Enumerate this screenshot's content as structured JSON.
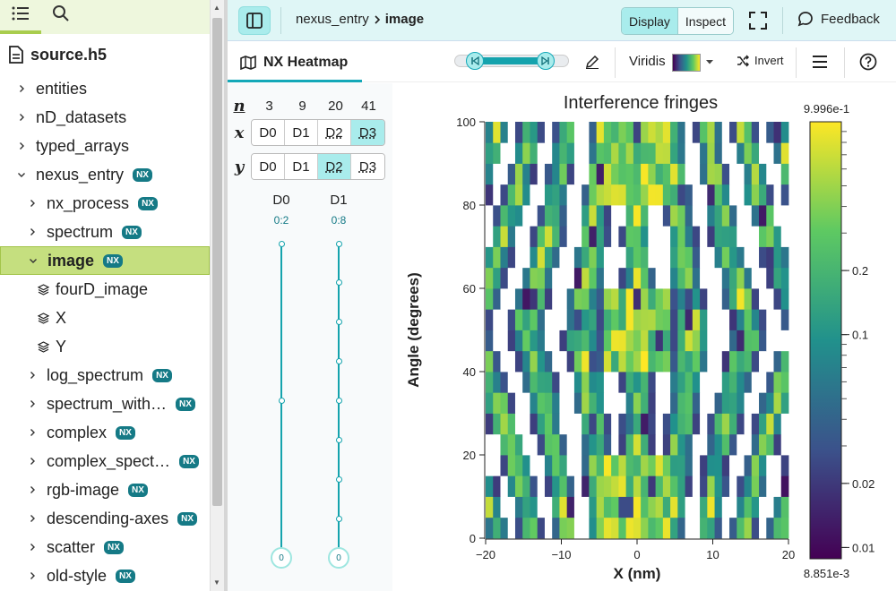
{
  "sidebar": {
    "file_name": "source.h5",
    "tree": [
      {
        "label": "entities",
        "level": 0,
        "kind": "group",
        "nx": false
      },
      {
        "label": "nD_datasets",
        "level": 0,
        "kind": "group",
        "nx": false
      },
      {
        "label": "typed_arrays",
        "level": 0,
        "kind": "group",
        "nx": false
      },
      {
        "label": "nexus_entry",
        "level": 0,
        "kind": "group-open",
        "nx": true
      },
      {
        "label": "nx_process",
        "level": 1,
        "kind": "group",
        "nx": true
      },
      {
        "label": "spectrum",
        "level": 1,
        "kind": "group",
        "nx": true
      },
      {
        "label": "image",
        "level": 1,
        "kind": "group-open",
        "nx": true,
        "selected": true
      },
      {
        "label": "fourD_image",
        "level": 2,
        "kind": "dataset",
        "nx": false
      },
      {
        "label": "X",
        "level": 2,
        "kind": "dataset",
        "nx": false
      },
      {
        "label": "Y",
        "level": 2,
        "kind": "dataset",
        "nx": false
      },
      {
        "label": "log_spectrum",
        "level": 1,
        "kind": "group",
        "nx": true
      },
      {
        "label": "spectrum_with…",
        "level": 1,
        "kind": "group",
        "nx": true
      },
      {
        "label": "complex",
        "level": 1,
        "kind": "group",
        "nx": true
      },
      {
        "label": "complex_spect…",
        "level": 1,
        "kind": "group",
        "nx": true
      },
      {
        "label": "rgb-image",
        "level": 1,
        "kind": "group",
        "nx": true
      },
      {
        "label": "descending-axes",
        "level": 1,
        "kind": "group",
        "nx": true
      },
      {
        "label": "scatter",
        "level": 1,
        "kind": "group",
        "nx": true
      },
      {
        "label": "old-style",
        "level": 1,
        "kind": "group",
        "nx": true
      }
    ],
    "nx_badge": "NX"
  },
  "topbar": {
    "breadcrumb_parent": "nexus_entry",
    "breadcrumb_current": "image",
    "display_label": "Display",
    "inspect_label": "Inspect",
    "feedback_label": "Feedback"
  },
  "vis_toolbar": {
    "tab_label": "NX Heatmap",
    "colormap": "Viridis",
    "invert_label": "Invert"
  },
  "dims": {
    "n_label": "n",
    "x_label": "x",
    "y_label": "y",
    "sizes": [
      "3",
      "9",
      "20",
      "41"
    ],
    "buttons": [
      "D0",
      "D1",
      "D2",
      "D3"
    ],
    "x_selected": "D3",
    "y_selected": "D2",
    "sliders": [
      {
        "name": "D0",
        "range": "0:2",
        "value": "0",
        "marks": 3
      },
      {
        "name": "D1",
        "range": "0:8",
        "value": "0",
        "marks": 9
      }
    ]
  },
  "heatmap": {
    "title": "Interference fringes",
    "xlabel": "X (nm)",
    "ylabel": "Angle (degrees)",
    "x_ticks": [
      "−20",
      "−10",
      "0",
      "10",
      "20"
    ],
    "y_ticks": [
      "0",
      "20",
      "40",
      "60",
      "80",
      "100"
    ],
    "xlim": [
      -20,
      20
    ],
    "ylim": [
      0,
      100
    ],
    "grid": 41,
    "rows": 20,
    "colorbar_max": "9.996e-1",
    "colorbar_min": "8.851e-3",
    "colorbar_ticks": [
      "0.2",
      "0.1",
      "0.02",
      "0.01"
    ],
    "colorbar_scale": "log",
    "colormap": [
      "#440154",
      "#3b528b",
      "#21918c",
      "#5ec962",
      "#fde725"
    ]
  }
}
